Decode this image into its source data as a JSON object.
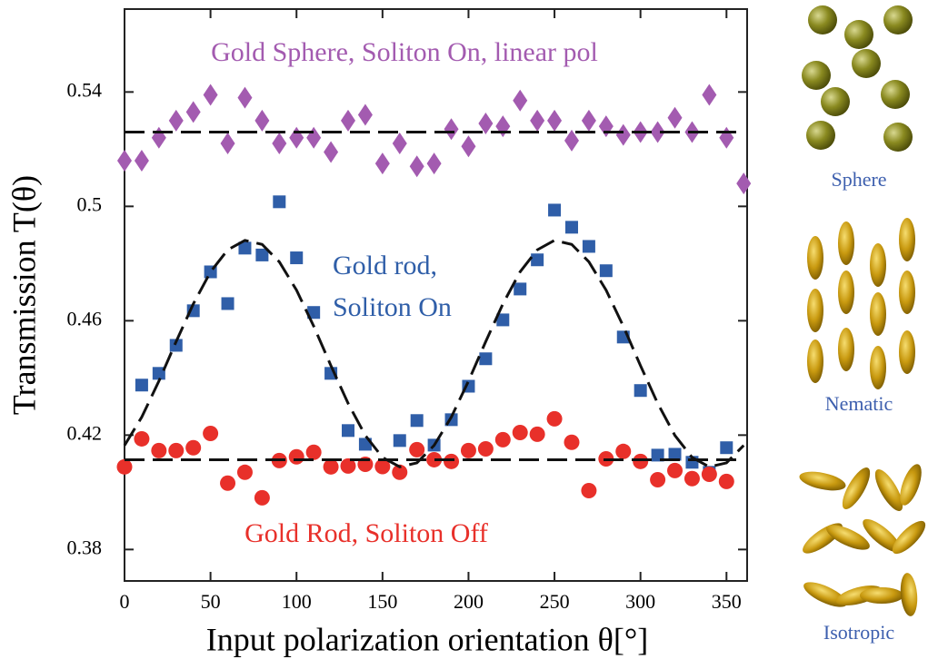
{
  "chart_data": {
    "type": "scatter",
    "xlabel": "Input polarization orientation θ[°]",
    "ylabel": "Transmission  T(θ)",
    "xlim": [
      0,
      362
    ],
    "ylim": [
      0.369,
      0.569
    ],
    "xticks": [
      0,
      50,
      100,
      150,
      200,
      250,
      300,
      350
    ],
    "yticks": [
      0.38,
      0.42,
      0.46,
      0.5,
      0.54
    ],
    "annotations": [
      {
        "text": "Gold Sphere, Soliton On, linear pol",
        "color": "#a35bb0"
      },
      {
        "text": "Gold rod,",
        "color": "#2f5ea8"
      },
      {
        "text": "Soliton On",
        "color": "#2f5ea8"
      },
      {
        "text": "Gold Rod, Soliton Off",
        "color": "#e8302a"
      }
    ],
    "series": [
      {
        "marker": "diamond",
        "color": "#a35bb0",
        "x": [
          0,
          10,
          20,
          30,
          40,
          50,
          60,
          70,
          80,
          90,
          100,
          110,
          120,
          130,
          140,
          150,
          160,
          170,
          180,
          190,
          200,
          210,
          220,
          230,
          240,
          250,
          260,
          270,
          280,
          290,
          300,
          310,
          320,
          330,
          340,
          350,
          360
        ],
        "values": [
          0.516,
          0.516,
          0.524,
          0.53,
          0.533,
          0.539,
          0.522,
          0.538,
          0.53,
          0.522,
          0.524,
          0.524,
          0.519,
          0.53,
          0.532,
          0.515,
          0.522,
          0.514,
          0.515,
          0.527,
          0.521,
          0.529,
          0.528,
          0.537,
          0.53,
          0.53,
          0.523,
          0.53,
          0.528,
          0.525,
          0.526,
          0.526,
          0.531,
          0.526,
          0.539,
          0.524,
          0.508
        ]
      },
      {
        "marker": "square",
        "color": "#2f5ea8",
        "x": [
          10,
          20,
          30,
          40,
          50,
          60,
          70,
          80,
          90,
          100,
          110,
          120,
          130,
          140,
          160,
          170,
          180,
          190,
          200,
          210,
          220,
          230,
          240,
          250,
          260,
          270,
          280,
          290,
          300,
          310,
          320,
          330,
          340,
          350
        ],
        "values": [
          0.4375,
          0.4416,
          0.4514,
          0.4635,
          0.4771,
          0.466,
          0.4854,
          0.483,
          0.5016,
          0.482,
          0.4629,
          0.4416,
          0.4216,
          0.4168,
          0.4181,
          0.4251,
          0.4165,
          0.4254,
          0.4371,
          0.4467,
          0.4603,
          0.4711,
          0.4813,
          0.4987,
          0.4927,
          0.486,
          0.4775,
          0.4543,
          0.4356,
          0.413,
          0.4133,
          0.4105,
          0.407,
          0.4156
        ]
      },
      {
        "marker": "circle",
        "color": "#e8302a",
        "x": [
          0,
          10,
          20,
          30,
          40,
          50,
          60,
          70,
          80,
          90,
          100,
          110,
          120,
          130,
          140,
          150,
          160,
          170,
          180,
          190,
          200,
          210,
          220,
          230,
          240,
          250,
          260,
          270,
          280,
          290,
          300,
          310,
          320,
          330,
          340,
          350
        ],
        "values": [
          0.4089,
          0.4187,
          0.4146,
          0.4146,
          0.4156,
          0.4206,
          0.4032,
          0.407,
          0.3981,
          0.4111,
          0.4124,
          0.414,
          0.4089,
          0.4092,
          0.4098,
          0.409,
          0.407,
          0.4149,
          0.4114,
          0.4108,
          0.4146,
          0.4152,
          0.4184,
          0.4209,
          0.4203,
          0.4257,
          0.4175,
          0.4006,
          0.4117,
          0.4143,
          0.4108,
          0.4044,
          0.4076,
          0.4048,
          0.4063,
          0.4038
        ]
      },
      {
        "marker": "dashed-line",
        "color": "#111111",
        "x": [
          0,
          360
        ],
        "values": [
          0.526,
          0.526
        ]
      },
      {
        "marker": "dashed-line",
        "color": "#111111",
        "x": [
          0,
          360
        ],
        "values": [
          0.4114,
          0.4114
        ]
      },
      {
        "marker": "dashed-line",
        "color": "#111111",
        "x": [
          0,
          10,
          20,
          30,
          40,
          50,
          60,
          70,
          80,
          90,
          100,
          110,
          120,
          130,
          140,
          150,
          160,
          170,
          180,
          190,
          200,
          210,
          220,
          230,
          240,
          250,
          260,
          270,
          280,
          290,
          300,
          310,
          320,
          330,
          340,
          350,
          360
        ],
        "values": [
          0.4164,
          0.4263,
          0.4389,
          0.4527,
          0.4659,
          0.4771,
          0.4848,
          0.4881,
          0.4867,
          0.4806,
          0.4707,
          0.4581,
          0.4443,
          0.4311,
          0.4199,
          0.4122,
          0.4089,
          0.4103,
          0.4164,
          0.4263,
          0.4389,
          0.4527,
          0.4659,
          0.4771,
          0.4848,
          0.4881,
          0.4867,
          0.4806,
          0.4707,
          0.4581,
          0.4443,
          0.4311,
          0.4199,
          0.4122,
          0.4089,
          0.4103,
          0.4164
        ]
      }
    ]
  },
  "side_panel": {
    "labels": [
      "Sphere",
      "Nematic",
      "Isotropic"
    ]
  }
}
